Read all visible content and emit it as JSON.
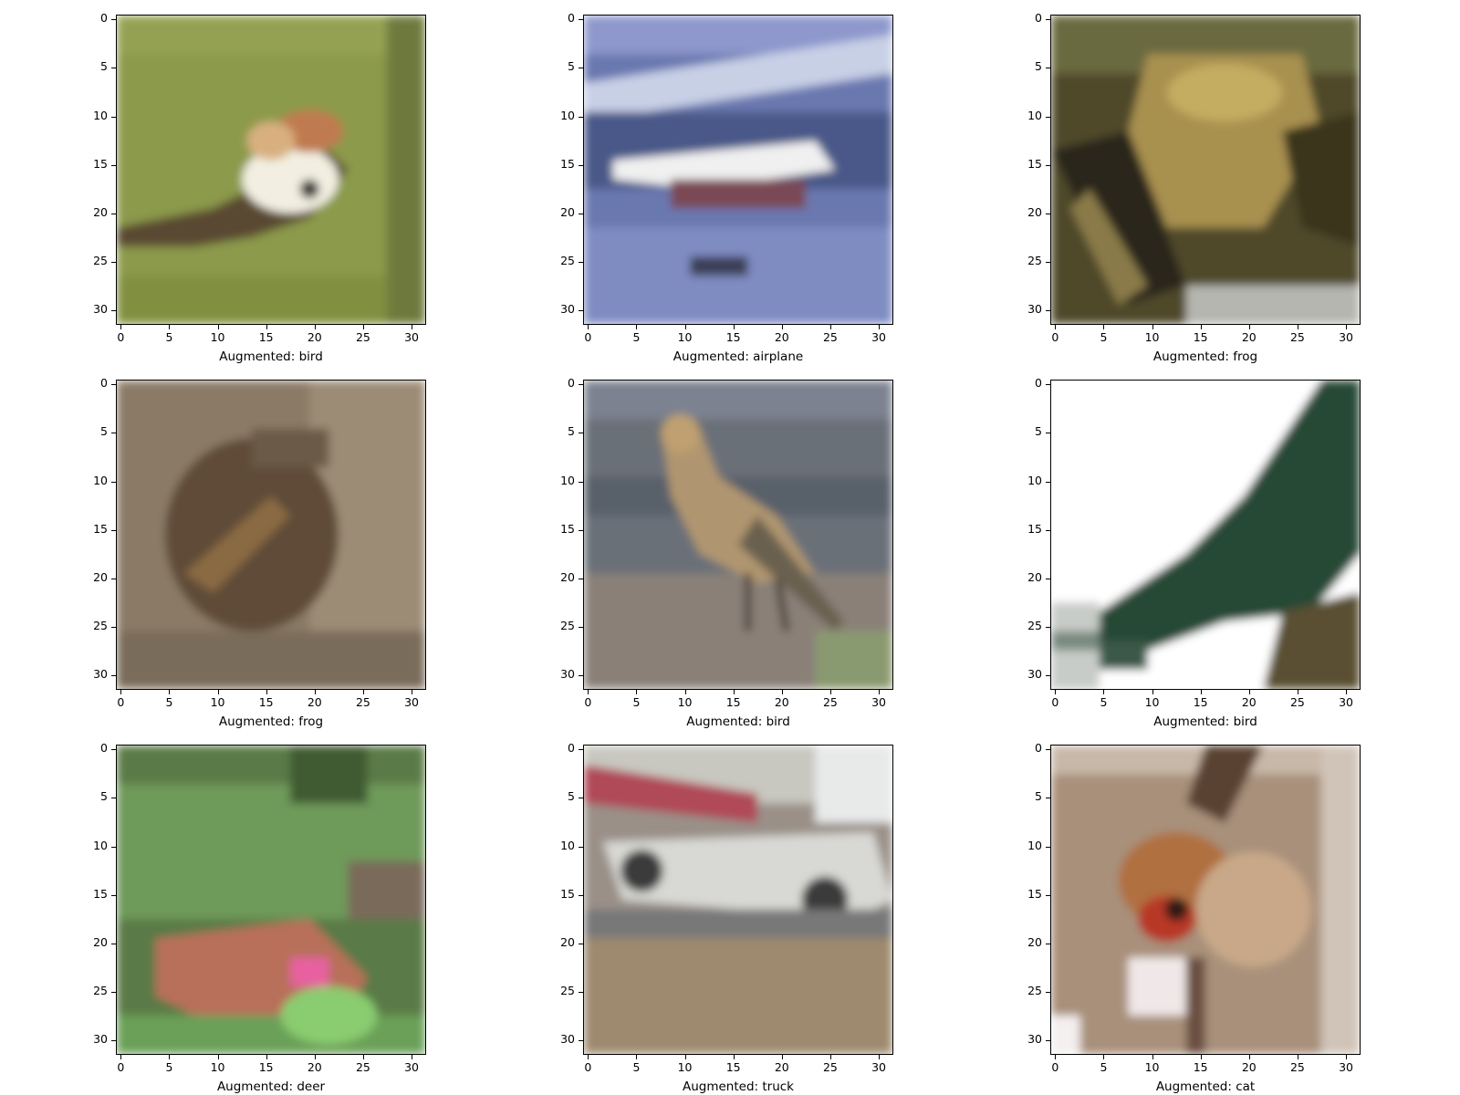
{
  "figure": {
    "axes": {
      "x_ticks": [
        "0",
        "5",
        "10",
        "15",
        "20",
        "25",
        "30"
      ],
      "y_ticks": [
        "0",
        "5",
        "10",
        "15",
        "20",
        "25",
        "30"
      ]
    },
    "panels": [
      {
        "caption": "Augmented: bird",
        "scene": "bird-on-green"
      },
      {
        "caption": "Augmented: airplane",
        "scene": "airplane"
      },
      {
        "caption": "Augmented: frog",
        "scene": "frog-yellow"
      },
      {
        "caption": "Augmented: frog",
        "scene": "frog-brown"
      },
      {
        "caption": "Augmented: bird",
        "scene": "bird-standing"
      },
      {
        "caption": "Augmented: bird",
        "scene": "bird-green-wing"
      },
      {
        "caption": "Augmented: deer",
        "scene": "deer-in-grass"
      },
      {
        "caption": "Augmented: truck",
        "scene": "truck"
      },
      {
        "caption": "Augmented: cat",
        "scene": "cat-face"
      }
    ]
  }
}
